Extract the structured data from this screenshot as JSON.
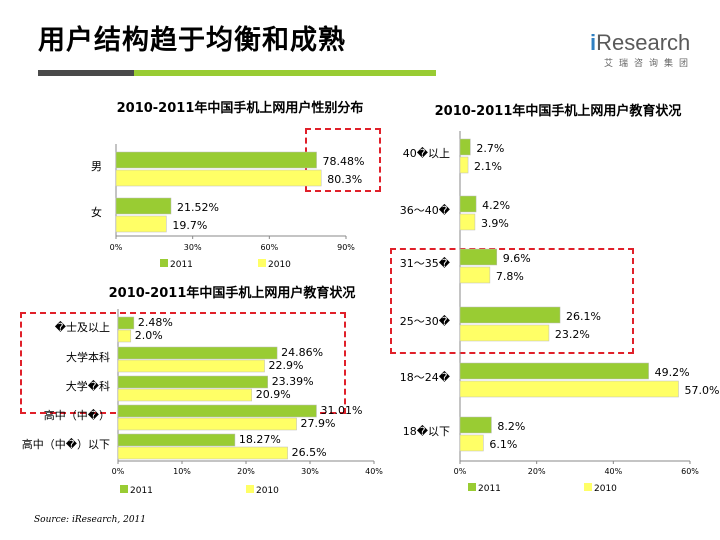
{
  "header": {
    "title": "用户结构趋于均衡和成熟",
    "logo_brand_prefix": "i",
    "logo_brand_rest": "Research",
    "logo_sub": "艾瑞咨询集团"
  },
  "source": "Source: iResearch, 2011",
  "colors": {
    "series_2011": "#99cc33",
    "series_2010": "#ffff66",
    "redbox": "#e0202a",
    "accent_green": "#99cc33"
  },
  "chart_data": [
    {
      "id": "gender",
      "type": "bar",
      "orientation": "horizontal",
      "title": "2010-2011年中国手机上网用户性别分布",
      "categories": [
        "男",
        "女"
      ],
      "series": [
        {
          "name": "2011",
          "values": [
            78.48,
            21.52
          ],
          "labels": [
            "78.48%",
            "21.52%"
          ]
        },
        {
          "name": "2010",
          "values": [
            80.3,
            19.7
          ],
          "labels": [
            "80.3%",
            "19.7%"
          ]
        }
      ],
      "xlim": [
        0,
        90
      ],
      "ticks": [
        0,
        30,
        60,
        90
      ],
      "tick_labels": [
        "0%",
        "30%",
        "60%",
        "90%"
      ]
    },
    {
      "id": "edu_left",
      "type": "bar",
      "orientation": "horizontal",
      "title": "2010-2011年中国手机上网用户教育状况",
      "categories": [
        "�士及以上",
        "大学本科",
        "大学�科",
        "高中（中�）",
        "高中（中�）以下"
      ],
      "series": [
        {
          "name": "2011",
          "values": [
            2.48,
            24.86,
            23.39,
            31.01,
            18.27
          ],
          "labels": [
            "2.48%",
            "24.86%",
            "23.39%",
            "31.01%",
            "18.27%"
          ]
        },
        {
          "name": "2010",
          "values": [
            2.0,
            22.9,
            20.9,
            27.9,
            26.5
          ],
          "labels": [
            "2.0%",
            "22.9%",
            "20.9%",
            "27.9%",
            "26.5%"
          ]
        }
      ],
      "xlim": [
        0,
        40
      ],
      "ticks": [
        0,
        10,
        20,
        30,
        40
      ],
      "tick_labels": [
        "0%",
        "10%",
        "20%",
        "30%",
        "40%"
      ]
    },
    {
      "id": "edu_right",
      "type": "bar",
      "orientation": "horizontal",
      "title": "2010-2011年中国手机上网用户教育状况",
      "categories": [
        "40�以上",
        "36～40�",
        "31～35�",
        "25～30�",
        "18～24�",
        "18�以下"
      ],
      "series": [
        {
          "name": "2011",
          "values": [
            2.7,
            4.2,
            9.6,
            26.1,
            49.2,
            8.2
          ],
          "labels": [
            "2.7%",
            "4.2%",
            "9.6%",
            "26.1%",
            "49.2%",
            "8.2%"
          ]
        },
        {
          "name": "2010",
          "values": [
            2.1,
            3.9,
            7.8,
            23.2,
            57.0,
            6.1
          ],
          "labels": [
            "2.1%",
            "3.9%",
            "7.8%",
            "23.2%",
            "57.0%",
            "6.1%"
          ]
        }
      ],
      "xlim": [
        0,
        60
      ],
      "ticks": [
        0,
        20,
        40,
        60
      ],
      "tick_labels": [
        "0%",
        "20%",
        "40%",
        "60%"
      ]
    }
  ]
}
